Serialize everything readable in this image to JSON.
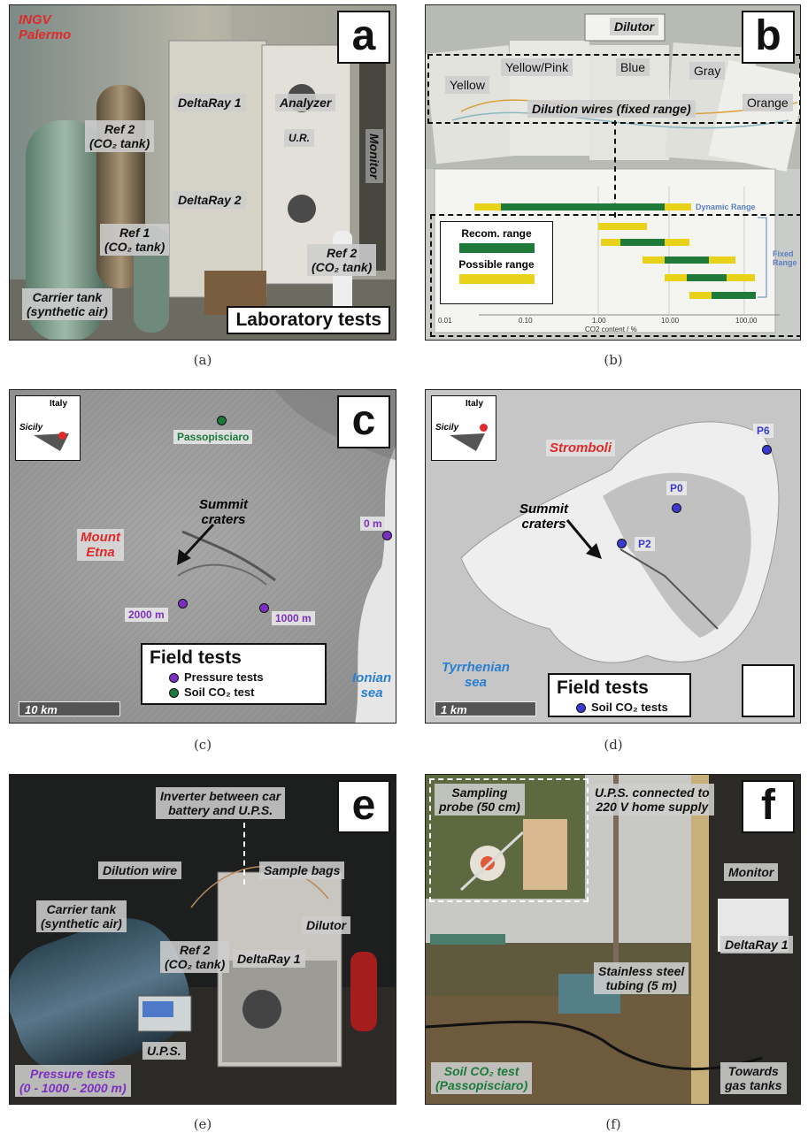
{
  "captions": {
    "a": "(a)",
    "b": "(b)",
    "c": "(c)",
    "d": "(d)",
    "e": "(e)",
    "f": "(f)"
  },
  "panel_a": {
    "letter": "a",
    "institution": [
      "INGV",
      "Palermo"
    ],
    "labels": {
      "deltaray1": "DeltaRay 1",
      "deltaray2": "DeltaRay 2",
      "analyzer": "Analyzer",
      "monitor": "Monitor",
      "upr": "U.R.",
      "ref2_left": [
        "Ref 2",
        "(CO₂ tank)"
      ],
      "ref1": [
        "Ref 1",
        "(CO₂ tank)"
      ],
      "ref2_right": [
        "Ref 2",
        "(CO₂ tank)"
      ],
      "carrier": [
        "Carrier tank",
        "(synthetic air)"
      ]
    },
    "title": "Laboratory tests"
  },
  "panel_b": {
    "letter": "b",
    "dilutor": "Dilutor",
    "wires": [
      "Yellow",
      "Yellow/Pink",
      "Blue",
      "Gray",
      "Orange"
    ],
    "dilution_wires": "Dilution wires (fixed range)",
    "legend": {
      "recom": "Recom. range",
      "possible": "Possible range"
    },
    "dynamic_range": "Dynamic Range",
    "fixed_range": "Fixed Range",
    "xaxis": {
      "title": "CO2 content / %",
      "ticks": [
        "0.01",
        "0.10",
        "1.00",
        "10.00",
        "100.00"
      ]
    }
  },
  "panel_c": {
    "letter": "c",
    "inset": {
      "country": "Italy",
      "island": "Sicily"
    },
    "places": {
      "volcano": [
        "Mount",
        "Etna"
      ],
      "summit": [
        "Summit",
        "craters"
      ],
      "sea": [
        "Ionian",
        "sea"
      ]
    },
    "points": [
      {
        "label": "Passopisciaro",
        "color": "#1b7a3a"
      },
      {
        "label": "0 m",
        "color": "#7b2fbf"
      },
      {
        "label": "2000 m",
        "color": "#7b2fbf"
      },
      {
        "label": "1000 m",
        "color": "#7b2fbf"
      }
    ],
    "legend": {
      "title": "Field tests",
      "rows": [
        {
          "label": "Pressure tests",
          "color": "#7b2fbf"
        },
        {
          "label": "Soil CO₂ test",
          "color": "#1b7a3a"
        }
      ]
    },
    "scale": "10 km"
  },
  "panel_d": {
    "letter": "",
    "inset": {
      "country": "Italy",
      "island": "Sicily"
    },
    "places": {
      "island": "Stromboli",
      "summit": [
        "Summit",
        "craters"
      ],
      "sea": [
        "Tyrrhenian",
        "sea"
      ]
    },
    "points": [
      {
        "label": "P6",
        "color": "#3a3ad0"
      },
      {
        "label": "P0",
        "color": "#3a3ad0"
      },
      {
        "label": "P2",
        "color": "#3a3ad0"
      }
    ],
    "legend": {
      "title": "Field tests",
      "rows": [
        {
          "label": "Soil CO₂ tests",
          "color": "#3a3ad0"
        }
      ]
    },
    "scale": "1 km"
  },
  "panel_e": {
    "letter": "e",
    "labels": {
      "inverter": [
        "Inverter between car",
        "battery and U.P.S."
      ],
      "dilution_wire": "Dilution wire",
      "sample_bags": "Sample bags",
      "carrier": [
        "Carrier tank",
        "(synthetic air)"
      ],
      "dilutor": "Dilutor",
      "ref2": [
        "Ref 2",
        "(CO₂ tank)"
      ],
      "deltaray1": "DeltaRay 1",
      "ups": "U.P.S.",
      "pressure": [
        "Pressure tests",
        "(0 - 1000 - 2000 m)"
      ]
    }
  },
  "panel_f": {
    "letter": "f",
    "labels": {
      "probe": [
        "Sampling",
        "probe (50 cm)"
      ],
      "ups": [
        "U.P.S. connected to",
        "220 V home supply"
      ],
      "monitor": "Monitor",
      "deltaray1": "DeltaRay 1",
      "tubing": [
        "Stainless steel",
        "tubing (5 m)"
      ],
      "soil": [
        "Soil CO₂ test",
        "(Passopisciaro)"
      ],
      "towards": [
        "Towards",
        "gas tanks"
      ]
    }
  },
  "colors": {
    "green_range": "#1f7a3a",
    "yellow_range": "#e8d21a",
    "red_label": "#e02a2a",
    "blue_label": "#2a7fd0",
    "purple_label": "#7b2fbf",
    "green_label": "#1b7a3a"
  }
}
